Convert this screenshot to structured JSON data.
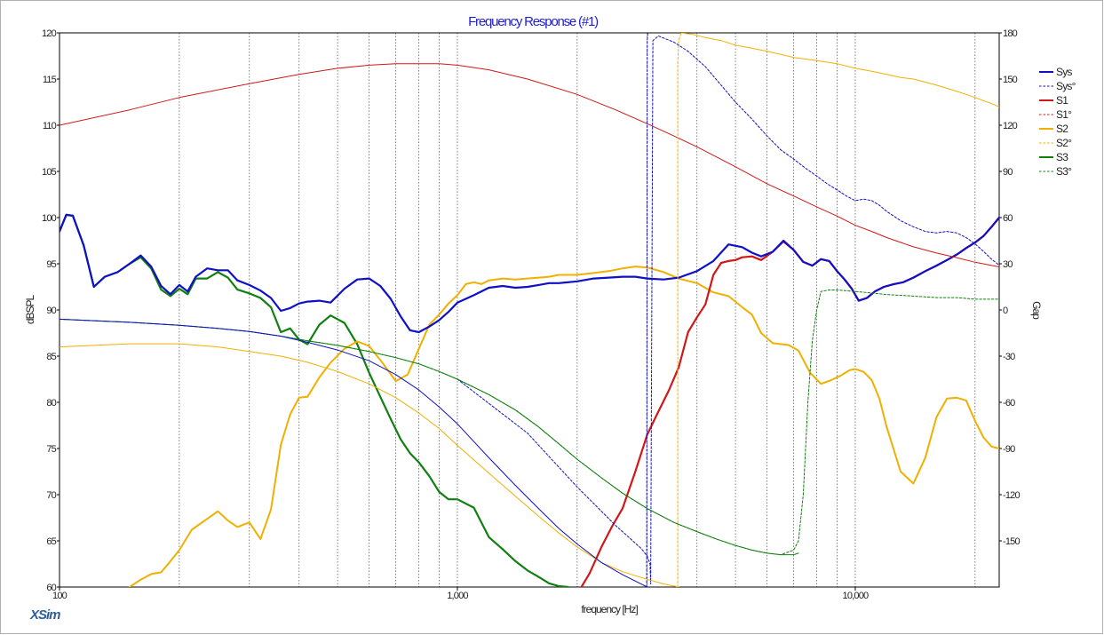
{
  "chart_data": {
    "type": "line",
    "title": "Frequency Response (#1)",
    "xlabel": "frequency [Hz]",
    "ylabel": "dBSPL",
    "y2label": "Gap",
    "x_scale": "log",
    "xlim": [
      100,
      23000
    ],
    "ylim": [
      60,
      120
    ],
    "y2lim": [
      -180,
      180
    ],
    "x_tick_labels": [
      "100",
      "1,000",
      "10,000"
    ],
    "x_ticks": [
      100,
      1000,
      10000
    ],
    "y_ticks": [
      60,
      65,
      70,
      75,
      80,
      85,
      90,
      95,
      100,
      105,
      110,
      115,
      120
    ],
    "y2_ticks": [
      -150,
      -120,
      -90,
      -60,
      -30,
      0,
      30,
      60,
      90,
      120,
      150,
      180
    ],
    "grid": "vertical-minor-dotted",
    "legend_position": "top-right",
    "colors": {
      "Sys": "#1010c8",
      "S1": "#d01818",
      "S2": "#f0b000",
      "S3": "#108010"
    },
    "legend": [
      {
        "label": "Sys",
        "color": "#1010c8",
        "dash": false
      },
      {
        "label": "Sys°",
        "color": "#1010c8",
        "dash": true
      },
      {
        "label": "S1",
        "color": "#d01818",
        "dash": false
      },
      {
        "label": "S1°",
        "color": "#d01818",
        "dash": true
      },
      {
        "label": "S2",
        "color": "#f0b000",
        "dash": false
      },
      {
        "label": "S2°",
        "color": "#f0b000",
        "dash": true
      },
      {
        "label": "S3",
        "color": "#108010",
        "dash": false
      },
      {
        "label": "S3°",
        "color": "#108010",
        "dash": true
      }
    ],
    "series": [
      {
        "name": "S3",
        "axis": "left",
        "style": "solid",
        "width": 2.2,
        "color": "#108010",
        "x": [
          100,
          104,
          108,
          115,
          122,
          130,
          140,
          150,
          160,
          170,
          180,
          190,
          200,
          210,
          220,
          235,
          250,
          265,
          280,
          300,
          320,
          340,
          360,
          380,
          400,
          420,
          450,
          480,
          520,
          560,
          600,
          640,
          680,
          720,
          760,
          800,
          850,
          900,
          950,
          1000,
          1100,
          1200,
          1300,
          1400,
          1500,
          1600,
          1700,
          1800,
          1900
        ],
        "y": [
          98.5,
          100.3,
          100.2,
          97,
          92.5,
          93.6,
          94.1,
          95,
          95.7,
          94.5,
          92.2,
          91.5,
          92.3,
          91.7,
          93.4,
          93.4,
          94.1,
          93.5,
          92.2,
          91.8,
          91.3,
          90.3,
          87.6,
          88,
          86.8,
          86.3,
          88.4,
          89.4,
          88.6,
          86.3,
          83.2,
          80.6,
          78.2,
          76,
          74.5,
          73.5,
          72,
          70.3,
          69.5,
          69.5,
          68.6,
          65.4,
          64.1,
          62.8,
          61.8,
          61.1,
          60.4,
          60.1,
          60
        ]
      },
      {
        "name": "S2",
        "axis": "left",
        "style": "solid",
        "width": 2,
        "color": "#f0b000",
        "x": [
          150,
          160,
          170,
          180,
          190,
          200,
          215,
          230,
          250,
          265,
          280,
          300,
          320,
          340,
          360,
          380,
          400,
          420,
          450,
          480,
          520,
          560,
          600,
          650,
          700,
          750,
          800,
          850,
          900,
          950,
          1000,
          1050,
          1100,
          1150,
          1200,
          1300,
          1400,
          1500,
          1600,
          1700,
          1800,
          2000,
          2200,
          2400,
          2600,
          2800,
          3000,
          3300,
          3600,
          4000,
          4400,
          4800,
          5200,
          5500,
          5800,
          6200,
          6800,
          7200,
          7700,
          8200,
          8700,
          9200,
          9700,
          10000,
          10500,
          11000,
          11500,
          12000,
          13000,
          14000,
          15000,
          16000,
          17000,
          18000,
          19000,
          20000,
          21000,
          22000,
          23000
        ],
        "y": [
          60,
          60.8,
          61.4,
          61.6,
          62.8,
          64,
          66.2,
          67.1,
          68.2,
          67.2,
          66.5,
          67,
          65.2,
          68.4,
          75.4,
          78.7,
          80.5,
          80.6,
          82.7,
          84.3,
          85.8,
          86.6,
          86.1,
          84.2,
          82.3,
          83,
          85.8,
          88.4,
          89.5,
          90.7,
          91.6,
          92.8,
          93,
          92.8,
          93.2,
          93.4,
          93.3,
          93.4,
          93.5,
          93.6,
          93.8,
          93.8,
          94,
          94.2,
          94.5,
          94.7,
          94.6,
          94.1,
          93.4,
          92.9,
          91.9,
          91.5,
          90.3,
          89.5,
          87.5,
          86.4,
          86.2,
          85.6,
          83.2,
          82,
          82.4,
          82.9,
          83.5,
          83.6,
          83.3,
          82.4,
          80.4,
          77.3,
          72.5,
          71.2,
          74,
          78.4,
          80.4,
          80.5,
          80.2,
          78,
          76.2,
          75.2,
          75
        ]
      },
      {
        "name": "S1",
        "axis": "left",
        "style": "solid",
        "width": 2.2,
        "color": "#d01818",
        "x": [
          2050,
          2150,
          2300,
          2450,
          2600,
          2800,
          3000,
          3200,
          3400,
          3600,
          3800,
          4000,
          4200,
          4400,
          4600,
          4800,
          5000,
          5200,
          5500,
          5800,
          6200,
          6600,
          7000,
          7400,
          7800,
          8200,
          8600,
          9000,
          9400,
          9800,
          10200,
          10700,
          11200,
          11800,
          12500,
          13200,
          14000,
          15000,
          16000,
          17000,
          18000,
          19000,
          20000,
          21000,
          22000,
          23000
        ],
        "y": [
          60,
          61.5,
          64.3,
          66.6,
          68.5,
          72.5,
          76.5,
          79,
          81.3,
          83.8,
          87.6,
          89.2,
          90.6,
          93.8,
          95.1,
          95.3,
          95.4,
          95.7,
          95.8,
          95.4,
          96.3,
          97.4,
          96.5,
          95.2,
          94.8,
          95.5,
          95.3,
          94.2,
          93.3,
          92.3,
          91,
          91.3,
          92,
          92.5,
          92.8,
          93,
          93.5,
          94.2,
          94.8,
          95.4,
          96,
          96.7,
          97.3,
          98,
          99,
          100
        ]
      },
      {
        "name": "Sys",
        "axis": "left",
        "style": "solid",
        "width": 2.2,
        "color": "#1010c8",
        "x": [
          100,
          104,
          108,
          115,
          122,
          130,
          140,
          150,
          160,
          170,
          180,
          190,
          200,
          210,
          220,
          235,
          250,
          265,
          280,
          300,
          320,
          340,
          360,
          380,
          400,
          420,
          450,
          480,
          520,
          560,
          600,
          640,
          680,
          720,
          760,
          800,
          850,
          900,
          950,
          1000,
          1100,
          1200,
          1300,
          1400,
          1500,
          1600,
          1700,
          1800,
          2000,
          2200,
          2400,
          2600,
          2800,
          3000,
          3300,
          3600,
          4000,
          4400,
          4800,
          5200,
          5500,
          5800,
          6200,
          6600,
          7000,
          7400,
          7800,
          8200,
          8600,
          9000,
          9400,
          9800,
          10200,
          10700,
          11200,
          11800,
          12500,
          13200,
          14000,
          15000,
          16000,
          17000,
          18000,
          19000,
          20000,
          21000,
          22000,
          23000
        ],
        "y": [
          98.5,
          100.3,
          100.2,
          97,
          92.5,
          93.6,
          94.1,
          95,
          95.9,
          94.7,
          92.6,
          91.7,
          92.7,
          92,
          93.6,
          94.5,
          94.3,
          94.3,
          93.2,
          92.7,
          92.1,
          91.3,
          89.9,
          90.2,
          90.7,
          90.9,
          91,
          90.8,
          92.3,
          93.3,
          93.4,
          92.6,
          91.2,
          89.3,
          87.8,
          87.6,
          88.2,
          88.9,
          89.8,
          90.8,
          91.6,
          92.4,
          92.6,
          92.4,
          92.5,
          92.7,
          92.9,
          92.9,
          93.1,
          93.4,
          93.5,
          93.6,
          93.6,
          93.4,
          93.3,
          93.5,
          94.2,
          95.3,
          97.1,
          96.8,
          96.2,
          95.8,
          96.3,
          97.5,
          96.5,
          95.2,
          94.8,
          95.5,
          95.3,
          94.2,
          93.3,
          92.3,
          91,
          91.3,
          92,
          92.5,
          92.8,
          93,
          93.5,
          94.2,
          94.8,
          95.4,
          96,
          96.7,
          97.3,
          98,
          99,
          100
        ]
      },
      {
        "name": "S3°",
        "axis": "right",
        "style": "dash",
        "width": 1,
        "color": "#108010",
        "x": [
          100,
          150,
          200,
          250,
          300,
          360,
          420,
          500,
          600,
          700,
          800,
          900,
          1000,
          1200,
          1400,
          1600,
          1800,
          2000,
          2300,
          2600,
          3000,
          3500,
          4000,
          4500,
          5000,
          5500,
          6000,
          6500,
          7000,
          7200,
          7400,
          7600,
          7800,
          8000,
          8200,
          8600,
          9000,
          10000,
          11000,
          12000,
          14000,
          16000,
          18000,
          20000,
          23000
        ],
        "y": [
          -6,
          -8,
          -10,
          -12,
          -14,
          -17,
          -20,
          -23,
          -27,
          -31,
          -35,
          -40,
          -45,
          -55,
          -65,
          -76,
          -87,
          -97,
          -109,
          -119,
          -129,
          -138,
          -144,
          -149,
          -153,
          -156,
          -158,
          -159,
          -156,
          -150,
          -120,
          -60,
          -20,
          0,
          12,
          13,
          13,
          12,
          11,
          10,
          9,
          8,
          8,
          7,
          7
        ]
      },
      {
        "name": "S1°",
        "axis": "right",
        "style": "solid",
        "width": 1,
        "color": "#d01818",
        "x": [
          100,
          150,
          200,
          300,
          400,
          500,
          600,
          700,
          800,
          900,
          1000,
          1200,
          1500,
          2000,
          2500,
          3000,
          3500,
          4000,
          5000,
          6000,
          7000,
          8000,
          9000,
          10000,
          11000,
          12000,
          14000,
          16000,
          18000,
          20000,
          23000
        ],
        "y": [
          120,
          130,
          138,
          147,
          153,
          157,
          159,
          160,
          160,
          160,
          159,
          156,
          150,
          140,
          130,
          121,
          113,
          106,
          93,
          82,
          74,
          67,
          61,
          55,
          51,
          47,
          41,
          37,
          34,
          31,
          28
        ]
      },
      {
        "name": "S2°",
        "axis": "right",
        "style": "solid",
        "width": 1,
        "color": "#f0b000",
        "x": [
          3650,
          3900,
          4200,
          4600,
          5000,
          5500,
          6000,
          6500,
          7000,
          7500,
          8000,
          9000,
          10000,
          11000,
          12000,
          13000,
          14000,
          15000,
          16000,
          17000,
          18000,
          19000,
          20000,
          21000,
          22000,
          23000
        ],
        "y": [
          180,
          179,
          177,
          175,
          172,
          170,
          168,
          166,
          164,
          163,
          162,
          160,
          157,
          155,
          153,
          151,
          150,
          148,
          146,
          144,
          142,
          140,
          138,
          136,
          134,
          132
        ]
      },
      {
        "name": "S2° jump",
        "axis": "right",
        "style": "dash",
        "width": 1,
        "color": "#f0b000",
        "x": [
          3580,
          3580,
          3600,
          3650
        ],
        "y": [
          -180,
          160,
          175,
          180
        ]
      },
      {
        "name": "Sys°",
        "axis": "right",
        "style": "dash",
        "width": 1,
        "color": "#1010c8",
        "x": [
          1000,
          1500,
          2000,
          2500,
          2900,
          3000,
          3050,
          3060,
          3100,
          3200,
          3500,
          3800,
          4200,
          4600,
          5000,
          5500,
          6000,
          6500,
          7000,
          7500,
          8000,
          8500,
          9000,
          9500,
          10000,
          10500,
          11000,
          11500,
          12000,
          13000,
          14000,
          15000,
          16000,
          17000,
          18000,
          19000,
          20000,
          21000,
          22000,
          23000
        ],
        "y": [
          -45,
          -80,
          -115,
          -140,
          -155,
          -160,
          -165,
          -178,
          175,
          178,
          174,
          168,
          158,
          146,
          135,
          124,
          113,
          104,
          98,
          92,
          87,
          82,
          78,
          74,
          71,
          72,
          71,
          68,
          64,
          58,
          54,
          51,
          50,
          51,
          50,
          47,
          43,
          38,
          33,
          29
        ]
      },
      {
        "name": "Sys° wrap",
        "axis": "right",
        "style": "dash",
        "width": 1,
        "color": "#1010c8",
        "x": [
          2990,
          3000,
          3010
        ],
        "y": [
          -180,
          175,
          180
        ]
      },
      {
        "name": "S3° low",
        "axis": "right",
        "style": "solid",
        "width": 1,
        "color": "#108010",
        "x": [
          100,
          150,
          200,
          250,
          300,
          360,
          420,
          500,
          600,
          700,
          800,
          900,
          1000,
          1200,
          1400,
          1600,
          1800,
          2000,
          2300,
          2600,
          3000,
          3500,
          4000,
          4500,
          5000,
          5500,
          6000,
          6500,
          7000,
          7200
        ],
        "y": [
          -6,
          -8,
          -10,
          -12,
          -14,
          -17,
          -20,
          -23,
          -27,
          -31,
          -35,
          -40,
          -45,
          -55,
          -65,
          -76,
          -87,
          -97,
          -109,
          -119,
          -129,
          -138,
          -144,
          -149,
          -153,
          -156,
          -158,
          -159,
          -159,
          -158
        ]
      },
      {
        "name": "S2° low",
        "axis": "right",
        "style": "solid",
        "width": 1,
        "color": "#f0b000",
        "x": [
          100,
          150,
          200,
          250,
          300,
          360,
          420,
          500,
          600,
          700,
          800,
          900,
          1000,
          1200,
          1400,
          1600,
          1800,
          2000,
          2300,
          2600,
          3000,
          3300,
          3600
        ],
        "y": [
          -24,
          -22,
          -22,
          -24,
          -27,
          -30,
          -34,
          -40,
          -48,
          -57,
          -67,
          -77,
          -88,
          -106,
          -121,
          -134,
          -145,
          -154,
          -164,
          -170,
          -175,
          -178,
          -180
        ]
      },
      {
        "name": "Sys° low",
        "axis": "right",
        "style": "solid",
        "width": 1,
        "color": "#1010c8",
        "x": [
          100,
          150,
          200,
          250,
          300,
          360,
          420,
          500,
          600,
          700,
          800,
          900,
          1000,
          1200,
          1400,
          1600,
          1800,
          2000,
          2300,
          2600,
          3000
        ],
        "y": [
          -6,
          -8,
          -10,
          -12,
          -14,
          -17,
          -21,
          -26,
          -33,
          -42,
          -52,
          -63,
          -74,
          -96,
          -114,
          -129,
          -142,
          -152,
          -164,
          -172,
          -180
        ]
      }
    ]
  },
  "branding": {
    "logo_text": "XSim"
  }
}
